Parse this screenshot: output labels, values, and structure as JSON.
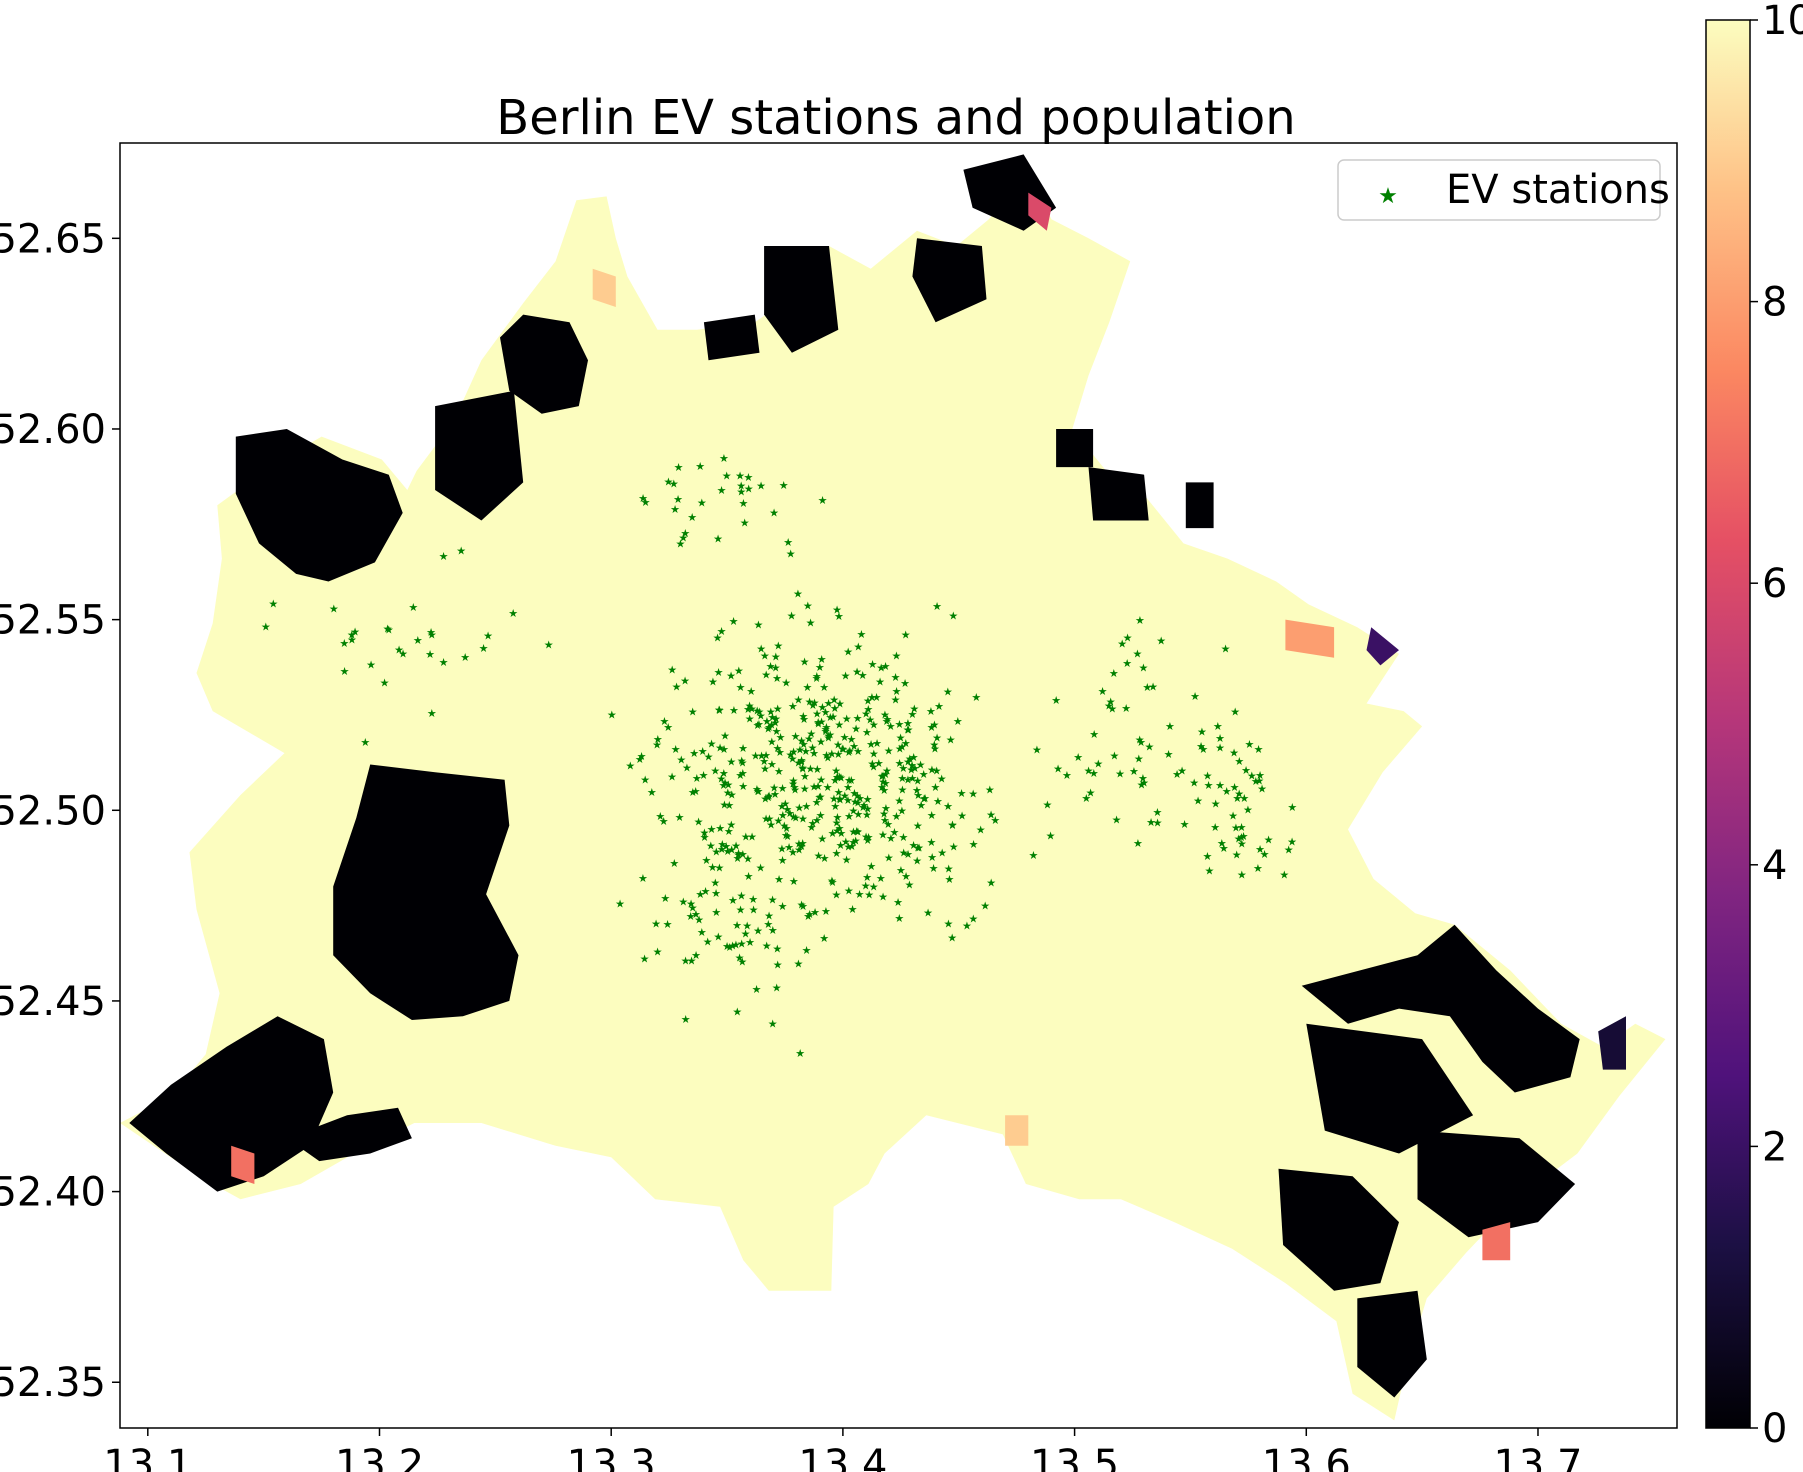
{
  "chart_data": {
    "type": "choropleth-scatter",
    "title": "Berlin EV stations and population",
    "xlim": [
      13.088,
      13.76
    ],
    "ylim": [
      52.338,
      52.675
    ],
    "x_ticks": [
      13.1,
      13.2,
      13.3,
      13.4,
      13.5,
      13.6,
      13.7
    ],
    "x_tick_labels": [
      "13.1",
      "13.2",
      "13.3",
      "13.4",
      "13.5",
      "13.6",
      "13.7"
    ],
    "y_ticks": [
      52.35,
      52.4,
      52.45,
      52.5,
      52.55,
      52.6,
      52.65
    ],
    "y_tick_labels": [
      "52.35",
      "52.40",
      "52.45",
      "52.50",
      "52.55",
      "52.60",
      "52.65"
    ],
    "legend": {
      "placement": "top-right",
      "entries": [
        "EV stations"
      ]
    },
    "colorbar": {
      "colormap": "magma",
      "range": [
        0,
        10
      ],
      "ticks": [
        0,
        2,
        4,
        6,
        8,
        10
      ],
      "tick_labels": [
        "0",
        "2",
        "4",
        "6",
        "8",
        "10"
      ]
    },
    "colors": {
      "populated": "#fcfdbf",
      "unpopulated": "#000004",
      "stations": "#008000"
    },
    "berlin_outline": [
      [
        13.088,
        52.418
      ],
      [
        13.11,
        52.425
      ],
      [
        13.125,
        52.436
      ],
      [
        13.131,
        52.452
      ],
      [
        13.121,
        52.474
      ],
      [
        13.118,
        52.489
      ],
      [
        13.14,
        52.504
      ],
      [
        13.159,
        52.515
      ],
      [
        13.128,
        52.526
      ],
      [
        13.121,
        52.536
      ],
      [
        13.128,
        52.549
      ],
      [
        13.132,
        52.566
      ],
      [
        13.13,
        52.58
      ],
      [
        13.155,
        52.591
      ],
      [
        13.175,
        52.598
      ],
      [
        13.201,
        52.592
      ],
      [
        13.212,
        52.584
      ],
      [
        13.216,
        52.589
      ],
      [
        13.232,
        52.602
      ],
      [
        13.244,
        52.618
      ],
      [
        13.262,
        52.633
      ],
      [
        13.276,
        52.644
      ],
      [
        13.285,
        52.66
      ],
      [
        13.298,
        52.661
      ],
      [
        13.302,
        52.65
      ],
      [
        13.307,
        52.64
      ],
      [
        13.32,
        52.626
      ],
      [
        13.337,
        52.626
      ],
      [
        13.362,
        52.628
      ],
      [
        13.374,
        52.633
      ],
      [
        13.384,
        52.648
      ],
      [
        13.394,
        52.648
      ],
      [
        13.412,
        52.642
      ],
      [
        13.432,
        52.652
      ],
      [
        13.449,
        52.648
      ],
      [
        13.463,
        52.655
      ],
      [
        13.48,
        52.668
      ],
      [
        13.49,
        52.655
      ],
      [
        13.506,
        52.65
      ],
      [
        13.524,
        52.644
      ],
      [
        13.515,
        52.628
      ],
      [
        13.506,
        52.614
      ],
      [
        13.499,
        52.6
      ],
      [
        13.515,
        52.588
      ],
      [
        13.531,
        52.582
      ],
      [
        13.547,
        52.57
      ],
      [
        13.566,
        52.566
      ],
      [
        13.587,
        52.56
      ],
      [
        13.601,
        52.554
      ],
      [
        13.622,
        52.548
      ],
      [
        13.64,
        52.541
      ],
      [
        13.626,
        52.528
      ],
      [
        13.642,
        52.526
      ],
      [
        13.65,
        52.522
      ],
      [
        13.633,
        52.51
      ],
      [
        13.618,
        52.495
      ],
      [
        13.629,
        52.482
      ],
      [
        13.647,
        52.473
      ],
      [
        13.664,
        52.47
      ],
      [
        13.688,
        52.458
      ],
      [
        13.71,
        52.444
      ],
      [
        13.728,
        52.438
      ],
      [
        13.742,
        52.444
      ],
      [
        13.755,
        52.44
      ],
      [
        13.735,
        52.425
      ],
      [
        13.717,
        52.41
      ],
      [
        13.691,
        52.398
      ],
      [
        13.669,
        52.384
      ],
      [
        13.652,
        52.372
      ],
      [
        13.644,
        52.356
      ],
      [
        13.638,
        52.34
      ],
      [
        13.62,
        52.347
      ],
      [
        13.613,
        52.366
      ],
      [
        13.591,
        52.376
      ],
      [
        13.568,
        52.385
      ],
      [
        13.543,
        52.392
      ],
      [
        13.52,
        52.398
      ],
      [
        13.502,
        52.398
      ],
      [
        13.479,
        52.402
      ],
      [
        13.469,
        52.415
      ],
      [
        13.436,
        52.42
      ],
      [
        13.418,
        52.41
      ],
      [
        13.411,
        52.402
      ],
      [
        13.396,
        52.396
      ],
      [
        13.395,
        52.374
      ],
      [
        13.368,
        52.374
      ],
      [
        13.357,
        52.382
      ],
      [
        13.347,
        52.396
      ],
      [
        13.319,
        52.398
      ],
      [
        13.3,
        52.409
      ],
      [
        13.276,
        52.412
      ],
      [
        13.244,
        52.418
      ],
      [
        13.215,
        52.418
      ],
      [
        13.189,
        52.41
      ],
      [
        13.166,
        52.402
      ],
      [
        13.14,
        52.398
      ],
      [
        13.122,
        52.404
      ]
    ],
    "black_zones": [
      [
        [
          13.138,
          52.598
        ],
        [
          13.16,
          52.6
        ],
        [
          13.184,
          52.592
        ],
        [
          13.204,
          52.588
        ],
        [
          13.21,
          52.578
        ],
        [
          13.198,
          52.565
        ],
        [
          13.178,
          52.56
        ],
        [
          13.164,
          52.562
        ],
        [
          13.148,
          52.57
        ],
        [
          13.138,
          52.583
        ]
      ],
      [
        [
          13.252,
          52.624
        ],
        [
          13.262,
          52.63
        ],
        [
          13.282,
          52.628
        ],
        [
          13.29,
          52.618
        ],
        [
          13.286,
          52.606
        ],
        [
          13.27,
          52.604
        ],
        [
          13.256,
          52.61
        ]
      ],
      [
        [
          13.224,
          52.606
        ],
        [
          13.258,
          52.61
        ],
        [
          13.262,
          52.586
        ],
        [
          13.244,
          52.576
        ],
        [
          13.224,
          52.584
        ]
      ],
      [
        [
          13.196,
          52.512
        ],
        [
          13.224,
          52.51
        ],
        [
          13.254,
          52.508
        ],
        [
          13.256,
          52.496
        ],
        [
          13.246,
          52.478
        ],
        [
          13.26,
          52.462
        ],
        [
          13.256,
          52.45
        ],
        [
          13.236,
          52.446
        ],
        [
          13.214,
          52.445
        ],
        [
          13.196,
          52.452
        ],
        [
          13.18,
          52.462
        ],
        [
          13.18,
          52.48
        ],
        [
          13.19,
          52.498
        ]
      ],
      [
        [
          13.092,
          52.418
        ],
        [
          13.11,
          52.428
        ],
        [
          13.134,
          52.438
        ],
        [
          13.156,
          52.446
        ],
        [
          13.176,
          52.44
        ],
        [
          13.18,
          52.426
        ],
        [
          13.17,
          52.412
        ],
        [
          13.15,
          52.404
        ],
        [
          13.13,
          52.4
        ],
        [
          13.108,
          52.41
        ]
      ],
      [
        [
          13.16,
          52.414
        ],
        [
          13.186,
          52.42
        ],
        [
          13.208,
          52.422
        ],
        [
          13.214,
          52.414
        ],
        [
          13.196,
          52.41
        ],
        [
          13.174,
          52.408
        ]
      ],
      [
        [
          13.366,
          52.648
        ],
        [
          13.394,
          52.648
        ],
        [
          13.398,
          52.626
        ],
        [
          13.378,
          52.62
        ],
        [
          13.366,
          52.63
        ]
      ],
      [
        [
          13.34,
          52.628
        ],
        [
          13.362,
          52.63
        ],
        [
          13.364,
          52.62
        ],
        [
          13.342,
          52.618
        ]
      ],
      [
        [
          13.432,
          52.65
        ],
        [
          13.46,
          52.648
        ],
        [
          13.462,
          52.634
        ],
        [
          13.44,
          52.628
        ],
        [
          13.43,
          52.64
        ]
      ],
      [
        [
          13.452,
          52.668
        ],
        [
          13.478,
          52.672
        ],
        [
          13.492,
          52.658
        ],
        [
          13.478,
          52.652
        ],
        [
          13.456,
          52.658
        ]
      ],
      [
        [
          13.506,
          52.59
        ],
        [
          13.53,
          52.588
        ],
        [
          13.532,
          52.576
        ],
        [
          13.508,
          52.576
        ]
      ],
      [
        [
          13.598,
          52.454
        ],
        [
          13.648,
          52.462
        ],
        [
          13.664,
          52.47
        ],
        [
          13.682,
          52.458
        ],
        [
          13.7,
          52.448
        ],
        [
          13.718,
          52.44
        ],
        [
          13.714,
          52.43
        ],
        [
          13.69,
          52.426
        ],
        [
          13.676,
          52.434
        ],
        [
          13.662,
          52.446
        ],
        [
          13.64,
          52.448
        ],
        [
          13.618,
          52.444
        ]
      ],
      [
        [
          13.6,
          52.444
        ],
        [
          13.65,
          52.44
        ],
        [
          13.672,
          52.42
        ],
        [
          13.64,
          52.41
        ],
        [
          13.608,
          52.416
        ]
      ],
      [
        [
          13.588,
          52.406
        ],
        [
          13.62,
          52.404
        ],
        [
          13.64,
          52.392
        ],
        [
          13.632,
          52.376
        ],
        [
          13.612,
          52.374
        ],
        [
          13.59,
          52.386
        ]
      ],
      [
        [
          13.648,
          52.416
        ],
        [
          13.692,
          52.414
        ],
        [
          13.716,
          52.402
        ],
        [
          13.7,
          52.392
        ],
        [
          13.67,
          52.388
        ],
        [
          13.648,
          52.398
        ]
      ],
      [
        [
          13.622,
          52.372
        ],
        [
          13.648,
          52.374
        ],
        [
          13.652,
          52.356
        ],
        [
          13.638,
          52.346
        ],
        [
          13.622,
          52.354
        ]
      ],
      [
        [
          13.492,
          52.6
        ],
        [
          13.508,
          52.6
        ],
        [
          13.508,
          52.59
        ],
        [
          13.492,
          52.59
        ]
      ],
      [
        [
          13.548,
          52.586
        ],
        [
          13.56,
          52.586
        ],
        [
          13.56,
          52.574
        ],
        [
          13.548,
          52.574
        ]
      ]
    ],
    "accent_patches": [
      {
        "value": 1,
        "points": [
          [
            13.726,
            52.442
          ],
          [
            13.738,
            52.446
          ],
          [
            13.738,
            52.432
          ],
          [
            13.728,
            52.432
          ]
        ]
      },
      {
        "value": 2,
        "points": [
          [
            13.628,
            52.548
          ],
          [
            13.64,
            52.542
          ],
          [
            13.632,
            52.538
          ],
          [
            13.626,
            52.542
          ]
        ]
      },
      {
        "value": 6,
        "points": [
          [
            13.48,
            52.662
          ],
          [
            13.49,
            52.658
          ],
          [
            13.488,
            52.652
          ],
          [
            13.48,
            52.656
          ]
        ]
      },
      {
        "value": 7,
        "points": [
          [
            13.136,
            52.412
          ],
          [
            13.146,
            52.41
          ],
          [
            13.146,
            52.402
          ],
          [
            13.136,
            52.404
          ]
        ]
      },
      {
        "value": 7,
        "points": [
          [
            13.676,
            52.39
          ],
          [
            13.688,
            52.392
          ],
          [
            13.688,
            52.382
          ],
          [
            13.676,
            52.382
          ]
        ]
      },
      {
        "value": 8,
        "points": [
          [
            13.591,
            52.55
          ],
          [
            13.612,
            52.548
          ],
          [
            13.612,
            52.54
          ],
          [
            13.591,
            52.542
          ]
        ]
      },
      {
        "value": 9,
        "points": [
          [
            13.292,
            52.642
          ],
          [
            13.302,
            52.64
          ],
          [
            13.302,
            52.632
          ],
          [
            13.292,
            52.634
          ]
        ]
      },
      {
        "value": 9,
        "points": [
          [
            13.47,
            52.42
          ],
          [
            13.48,
            52.42
          ],
          [
            13.48,
            52.412
          ],
          [
            13.47,
            52.412
          ]
        ]
      }
    ],
    "ev_station_clusters": [
      {
        "center": [
          13.39,
          52.51
        ],
        "spread": [
          0.085,
          0.04
        ],
        "count": 470
      },
      {
        "center": [
          13.35,
          52.47
        ],
        "spread": [
          0.05,
          0.025
        ],
        "count": 60
      },
      {
        "center": [
          13.53,
          52.52
        ],
        "spread": [
          0.04,
          0.03
        ],
        "count": 50
      },
      {
        "center": [
          13.57,
          52.5
        ],
        "spread": [
          0.03,
          0.035
        ],
        "count": 50
      },
      {
        "center": [
          13.22,
          52.54
        ],
        "spread": [
          0.06,
          0.025
        ],
        "count": 30
      },
      {
        "center": [
          13.34,
          52.58
        ],
        "spread": [
          0.06,
          0.02
        ],
        "count": 30
      }
    ]
  }
}
